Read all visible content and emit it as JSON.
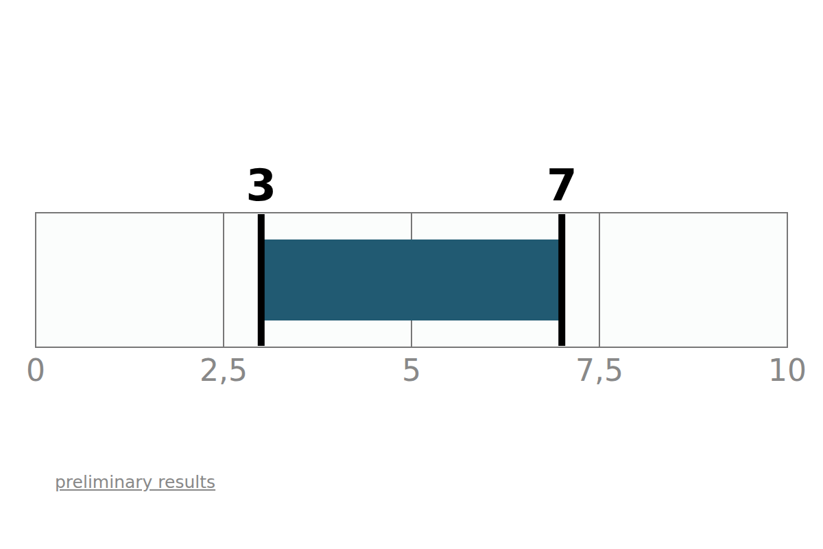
{
  "chart_data": {
    "type": "range",
    "orientation": "horizontal",
    "categories": [
      null
    ],
    "values": [
      [
        3,
        7
      ]
    ],
    "color": "#215a72",
    "xlim": [
      0,
      10
    ],
    "xticks": [
      0,
      {
        "value": 2.5,
        "label": "2,5"
      },
      5,
      {
        "value": 7.5,
        "label": "7,5"
      },
      10
    ],
    "grid": true,
    "data_labels": true,
    "annotation": "preliminary results"
  }
}
